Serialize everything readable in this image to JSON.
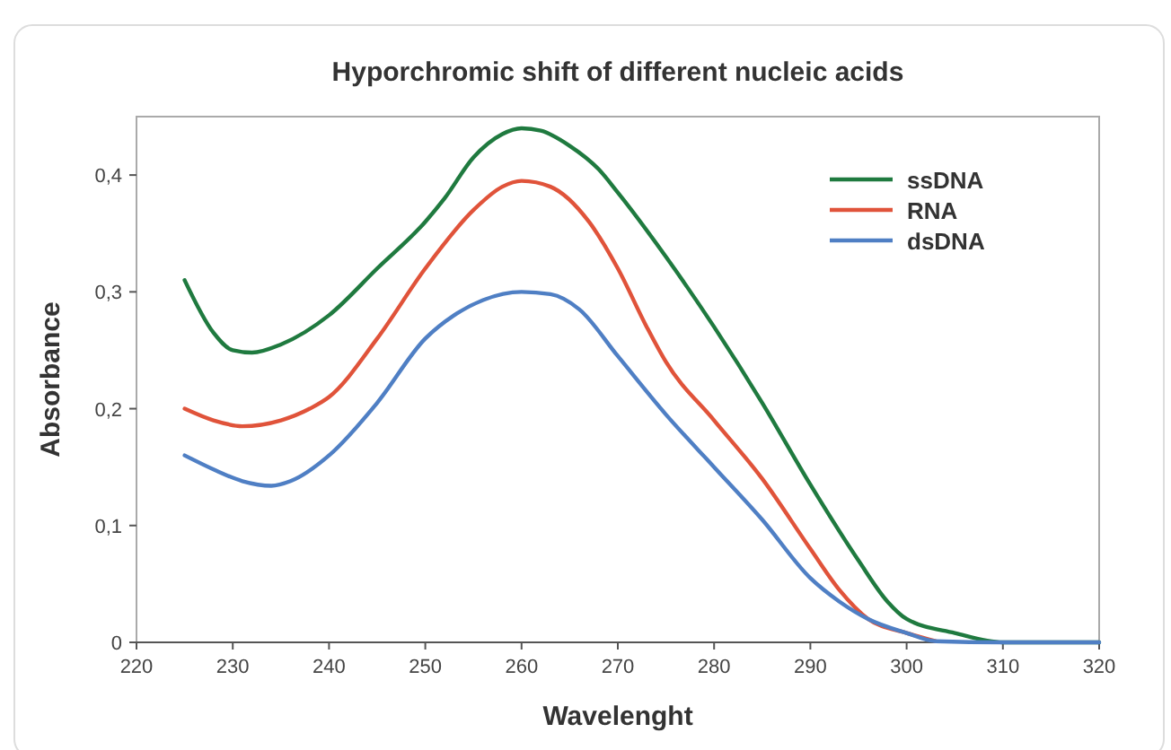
{
  "chart_data": {
    "type": "line",
    "title": "Hyporchromic shift of different nucleic acids",
    "xlabel": "Wavelenght",
    "ylabel": "Absorbance",
    "xlim": [
      220,
      320
    ],
    "xticks": [
      220,
      230,
      240,
      250,
      260,
      270,
      280,
      290,
      300,
      310,
      320
    ],
    "ylim": [
      0,
      0.45
    ],
    "yticks": [
      {
        "value": 0,
        "label": "0"
      },
      {
        "value": 0.1,
        "label": "0,1"
      },
      {
        "value": 0.2,
        "label": "0,2"
      },
      {
        "value": 0.3,
        "label": "0,3"
      },
      {
        "value": 0.4,
        "label": "0,4"
      }
    ],
    "grid": false,
    "legend": "top right",
    "line_style": "solid",
    "series": [
      {
        "name": "ssDNA",
        "color": "#1f7a3f",
        "x": [
          225,
          228,
          230,
          232,
          235,
          240,
          245,
          250,
          252,
          255,
          258,
          260,
          262,
          265,
          268,
          270,
          275,
          280,
          285,
          290,
          295,
          298,
          300,
          305,
          310,
          320
        ],
        "values": [
          0.31,
          0.265,
          0.25,
          0.248,
          0.255,
          0.28,
          0.32,
          0.36,
          0.38,
          0.415,
          0.435,
          0.44,
          0.438,
          0.425,
          0.405,
          0.385,
          0.33,
          0.27,
          0.205,
          0.135,
          0.07,
          0.035,
          0.02,
          0.008,
          0,
          0
        ]
      },
      {
        "name": "RNA",
        "color": "#e0533a",
        "x": [
          225,
          228,
          231,
          235,
          238,
          240,
          245,
          250,
          255,
          258,
          260,
          263,
          267,
          270,
          273,
          275,
          280,
          285,
          290,
          293,
          296,
          300,
          303
        ],
        "values": [
          0.2,
          0.19,
          0.185,
          0.19,
          0.2,
          0.21,
          0.26,
          0.32,
          0.37,
          0.39,
          0.395,
          0.39,
          0.36,
          0.32,
          0.27,
          0.24,
          0.19,
          0.14,
          0.08,
          0.045,
          0.02,
          0.008,
          0.001
        ]
      },
      {
        "name": "dsDNA",
        "color": "#4f7fc4",
        "x": [
          225,
          228,
          231,
          234,
          236,
          240,
          245,
          250,
          253,
          256,
          260,
          263,
          266,
          270,
          275,
          280,
          285,
          290,
          293,
          296,
          300,
          303,
          310,
          320
        ],
        "values": [
          0.16,
          0.148,
          0.138,
          0.134,
          0.138,
          0.16,
          0.205,
          0.26,
          0.28,
          0.293,
          0.3,
          0.298,
          0.285,
          0.245,
          0.195,
          0.15,
          0.105,
          0.055,
          0.035,
          0.02,
          0.008,
          0.001,
          0,
          0
        ]
      }
    ]
  }
}
